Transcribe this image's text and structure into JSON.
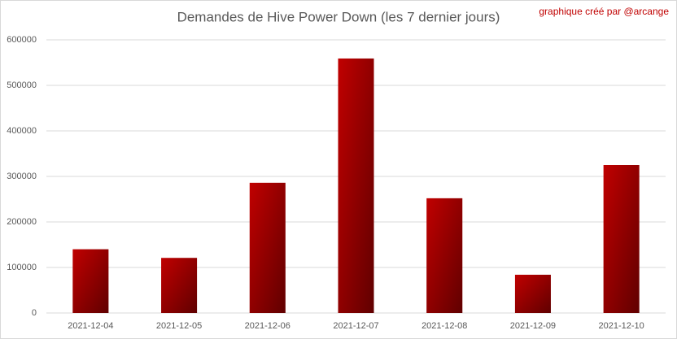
{
  "chart_data": {
    "type": "bar",
    "title": "Demandes de Hive Power Down (les 7 dernier jours)",
    "annotation": "graphique créé par @arcange",
    "categories": [
      "2021-12-04",
      "2021-12-05",
      "2021-12-06",
      "2021-12-07",
      "2021-12-08",
      "2021-12-09",
      "2021-12-10"
    ],
    "values": [
      140000,
      121000,
      286000,
      559000,
      252000,
      84000,
      325000
    ],
    "color": "#c00000",
    "ylim": [
      0,
      600000
    ],
    "yticks": [
      0,
      100000,
      200000,
      300000,
      400000,
      500000,
      600000
    ],
    "grid": true
  }
}
